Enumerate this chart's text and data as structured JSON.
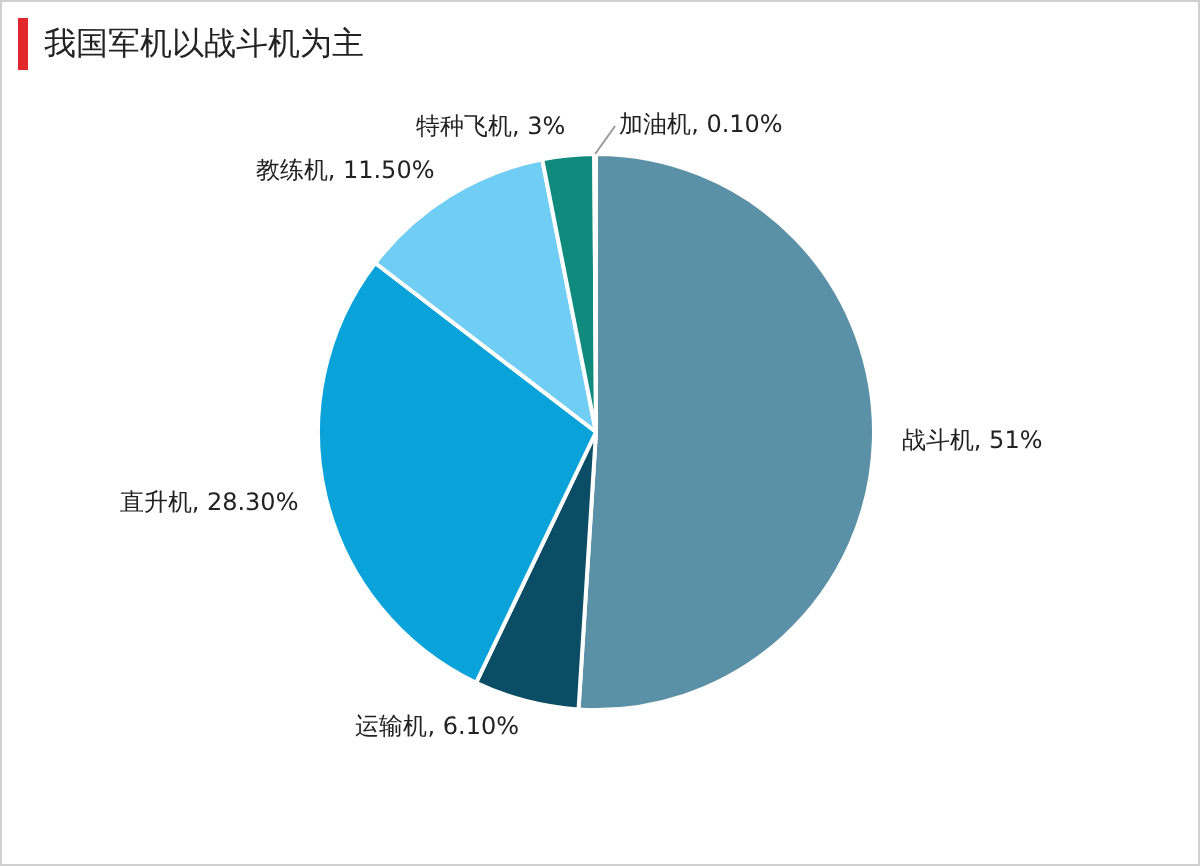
{
  "chart_data": {
    "type": "pie",
    "title": "我国军机以战斗机为主",
    "categories": [
      "战斗机",
      "运输机",
      "直升机",
      "教练机",
      "特种飞机",
      "加油机"
    ],
    "values": [
      51,
      6.1,
      28.3,
      11.5,
      3,
      0.1
    ],
    "value_labels": [
      "51%",
      "6.10%",
      "28.30%",
      "11.50%",
      "3%",
      "0.10%"
    ],
    "colors": [
      "#5b91a6",
      "#0c4d66",
      "#0aa3d9",
      "#70cdf3",
      "#0f8a7c",
      "#4a8fb0"
    ],
    "legend": false
  }
}
